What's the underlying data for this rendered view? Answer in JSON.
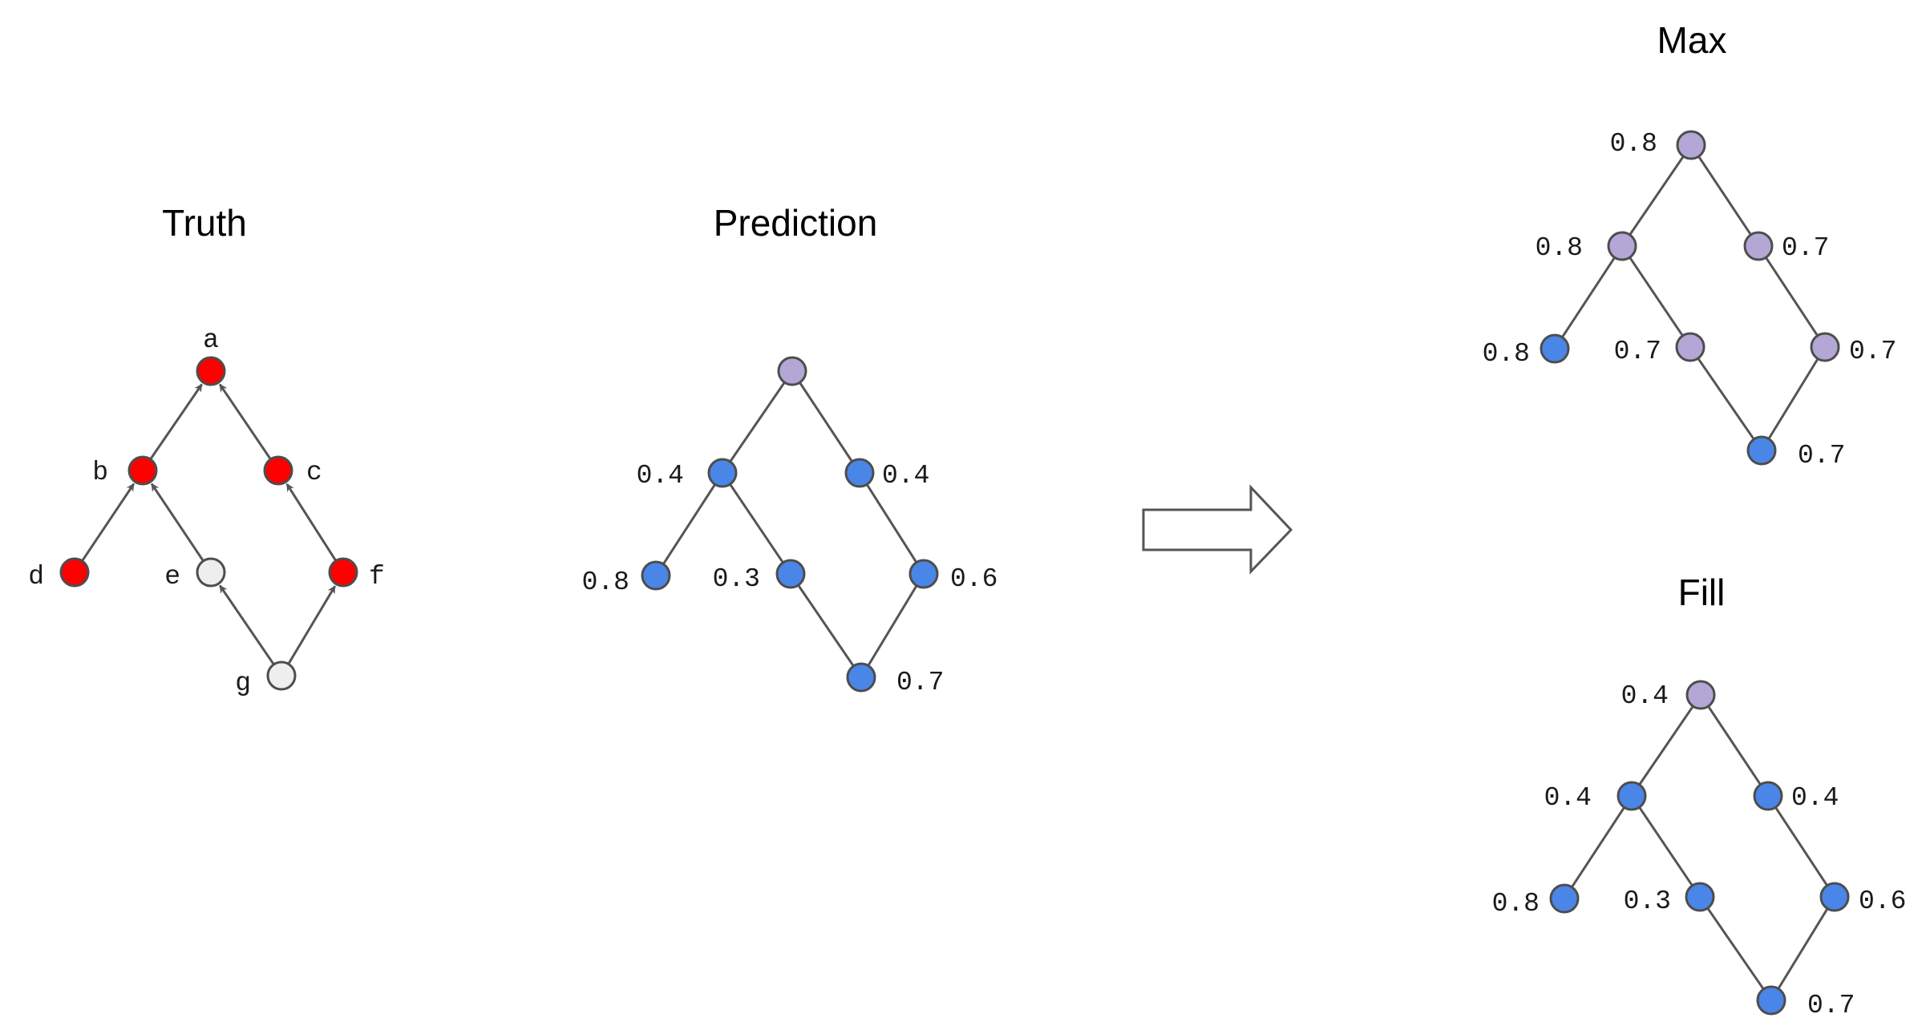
{
  "colors": {
    "truth_red": "#ff0000",
    "neutral_gray": "#eeeeee",
    "predicted_blue": "#4a86e8",
    "derived_purple": "#b4a7d6",
    "edge_gray": "#555555"
  },
  "panels": [
    {
      "id": "truth",
      "title": "Truth",
      "directed": true,
      "nodes": [
        {
          "id": "a",
          "label": "a",
          "color": "truth_red"
        },
        {
          "id": "b",
          "label": "b",
          "color": "truth_red"
        },
        {
          "id": "c",
          "label": "c",
          "color": "truth_red"
        },
        {
          "id": "d",
          "label": "d",
          "color": "truth_red"
        },
        {
          "id": "e",
          "label": "e",
          "color": "neutral_gray"
        },
        {
          "id": "f",
          "label": "f",
          "color": "truth_red"
        },
        {
          "id": "g",
          "label": "g",
          "color": "neutral_gray"
        }
      ],
      "edges": [
        [
          "b",
          "a"
        ],
        [
          "c",
          "a"
        ],
        [
          "d",
          "b"
        ],
        [
          "e",
          "b"
        ],
        [
          "f",
          "c"
        ],
        [
          "g",
          "e"
        ],
        [
          "g",
          "f"
        ]
      ]
    },
    {
      "id": "prediction",
      "title": "Prediction",
      "directed": false,
      "nodes": [
        {
          "id": "a",
          "label": "",
          "color": "derived_purple"
        },
        {
          "id": "b",
          "label": "0.4",
          "color": "predicted_blue"
        },
        {
          "id": "c",
          "label": "0.4",
          "color": "predicted_blue"
        },
        {
          "id": "d",
          "label": "0.8",
          "color": "predicted_blue"
        },
        {
          "id": "e",
          "label": "0.3",
          "color": "predicted_blue"
        },
        {
          "id": "f",
          "label": "0.6",
          "color": "predicted_blue"
        },
        {
          "id": "g",
          "label": "0.7",
          "color": "predicted_blue"
        }
      ],
      "edges": [
        [
          "b",
          "a"
        ],
        [
          "c",
          "a"
        ],
        [
          "d",
          "b"
        ],
        [
          "e",
          "b"
        ],
        [
          "f",
          "c"
        ],
        [
          "g",
          "e"
        ],
        [
          "g",
          "f"
        ]
      ]
    },
    {
      "id": "max",
      "title": "Max",
      "directed": false,
      "nodes": [
        {
          "id": "a",
          "label": "0.8",
          "color": "derived_purple"
        },
        {
          "id": "b",
          "label": "0.8",
          "color": "derived_purple"
        },
        {
          "id": "c",
          "label": "0.7",
          "color": "derived_purple"
        },
        {
          "id": "d",
          "label": "0.8",
          "color": "predicted_blue"
        },
        {
          "id": "e",
          "label": "0.7",
          "color": "derived_purple"
        },
        {
          "id": "f",
          "label": "0.7",
          "color": "derived_purple"
        },
        {
          "id": "g",
          "label": "0.7",
          "color": "predicted_blue"
        }
      ],
      "edges": [
        [
          "b",
          "a"
        ],
        [
          "c",
          "a"
        ],
        [
          "d",
          "b"
        ],
        [
          "e",
          "b"
        ],
        [
          "f",
          "c"
        ],
        [
          "g",
          "e"
        ],
        [
          "g",
          "f"
        ]
      ]
    },
    {
      "id": "fill",
      "title": "Fill",
      "directed": false,
      "nodes": [
        {
          "id": "a",
          "label": "0.4",
          "color": "derived_purple"
        },
        {
          "id": "b",
          "label": "0.4",
          "color": "predicted_blue"
        },
        {
          "id": "c",
          "label": "0.4",
          "color": "predicted_blue"
        },
        {
          "id": "d",
          "label": "0.8",
          "color": "predicted_blue"
        },
        {
          "id": "e",
          "label": "0.3",
          "color": "predicted_blue"
        },
        {
          "id": "f",
          "label": "0.6",
          "color": "predicted_blue"
        },
        {
          "id": "g",
          "label": "0.7",
          "color": "predicted_blue"
        }
      ],
      "edges": [
        [
          "b",
          "a"
        ],
        [
          "c",
          "a"
        ],
        [
          "d",
          "b"
        ],
        [
          "e",
          "b"
        ],
        [
          "f",
          "c"
        ],
        [
          "g",
          "e"
        ],
        [
          "g",
          "f"
        ]
      ]
    }
  ],
  "transform_arrow": {
    "icon": "right-arrow-icon"
  }
}
